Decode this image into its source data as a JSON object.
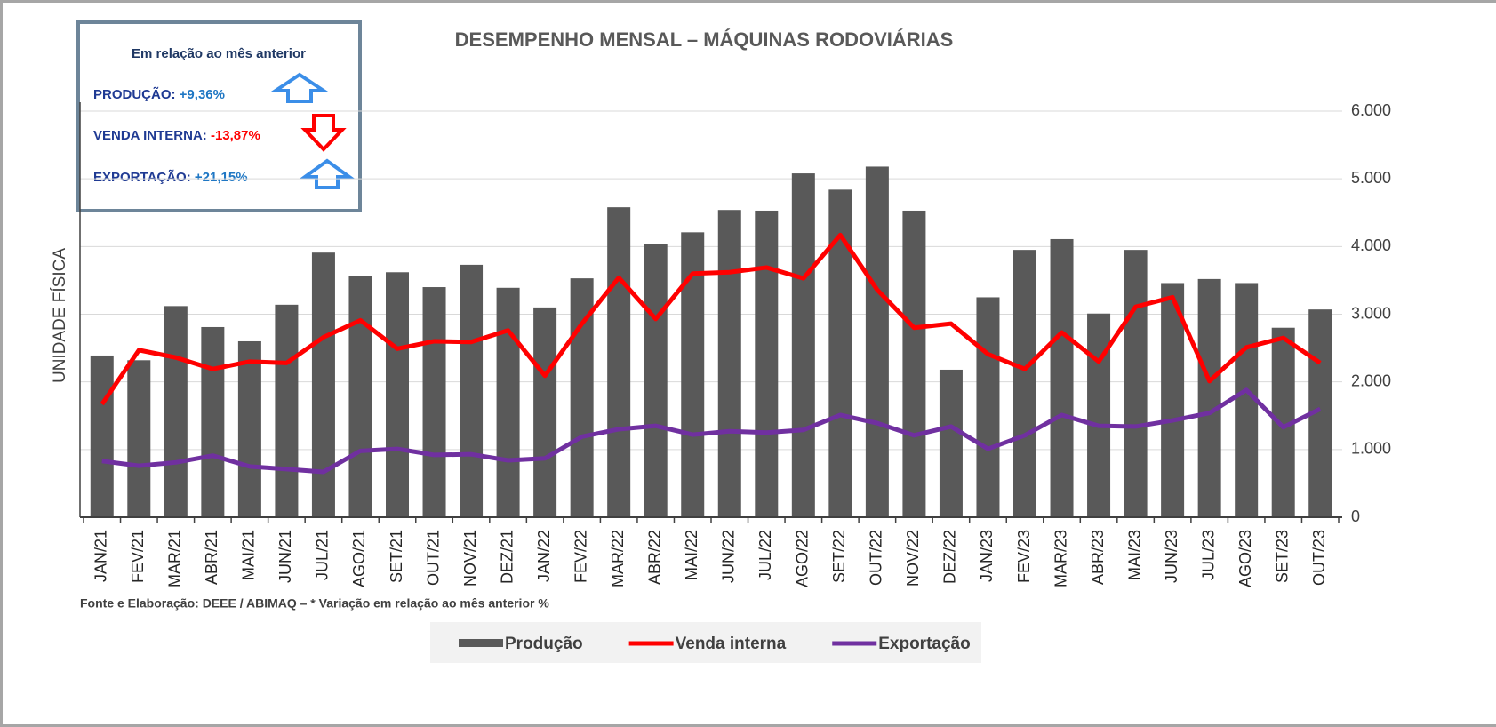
{
  "chart_data": {
    "type": "bar",
    "title": "DESEMPENHO MENSAL – MÁQUINAS RODOVIÁRIAS",
    "y_axis_label": "UNIDADE FÍSICA",
    "source": "Fonte e Elaboração: DEEE / ABIMAQ – * Variação em relação ao mês anterior %",
    "info_box": {
      "title": "Em relação ao mês anterior",
      "items": [
        {
          "label": "PRODUÇÃO:",
          "value": "+9,36%"
        },
        {
          "label": "VENDA INTERNA:",
          "value": "-13,87%"
        },
        {
          "label": "EXPORTAÇÃO:",
          "value": "+21,15%"
        }
      ]
    },
    "categories": [
      "JAN/21",
      "FEV/21",
      "MAR/21",
      "ABR/21",
      "MAI/21",
      "JUN/21",
      "JUL/21",
      "AGO/21",
      "SET/21",
      "OUT/21",
      "NOV/21",
      "DEZ/21",
      "JAN/22",
      "FEV/22",
      "MAR/22",
      "ABR/22",
      "MAI/22",
      "JUN/22",
      "JUL/22",
      "AGO/22",
      "SET/22",
      "OUT/22",
      "NOV/22",
      "DEZ/22",
      "JAN/23",
      "FEV/23",
      "MAR/23",
      "ABR/23",
      "MAI/23",
      "JUN/23",
      "JUL/23",
      "AGO/23",
      "SET/23",
      "OUT/23"
    ],
    "series": [
      {
        "name": "Produção",
        "type": "bar",
        "color": "#595959",
        "values": [
          2390,
          2320,
          3120,
          2810,
          2600,
          3140,
          3910,
          3560,
          3620,
          3400,
          3730,
          3390,
          3100,
          3530,
          4580,
          4040,
          4210,
          4540,
          4530,
          5080,
          4840,
          5180,
          4530,
          2180,
          3250,
          3950,
          4110,
          3010,
          3950,
          3460,
          3520,
          3460,
          2800,
          3070
        ]
      },
      {
        "name": "Venda interna",
        "type": "line",
        "color": "#ff0000",
        "values": [
          1670,
          2470,
          2360,
          2190,
          2300,
          2280,
          2660,
          2910,
          2490,
          2600,
          2590,
          2760,
          2090,
          2860,
          3540,
          2930,
          3600,
          3620,
          3690,
          3530,
          4170,
          3360,
          2800,
          2860,
          2410,
          2190,
          2730,
          2300,
          3110,
          3250,
          2010,
          2510,
          2650,
          2280
        ]
      },
      {
        "name": "Exportação",
        "type": "line",
        "color": "#7030a0",
        "values": [
          830,
          760,
          810,
          910,
          750,
          710,
          670,
          980,
          1010,
          920,
          930,
          840,
          870,
          1190,
          1300,
          1350,
          1220,
          1270,
          1250,
          1290,
          1510,
          1390,
          1210,
          1340,
          1010,
          1210,
          1510,
          1350,
          1340,
          1430,
          1540,
          1880,
          1330,
          1600
        ]
      }
    ],
    "ylim": [
      0,
      6000
    ],
    "yticks": [
      0,
      {
        "value": 1000,
        "label": "1.000"
      },
      {
        "value": 2000,
        "label": "2.000"
      },
      {
        "value": 3000,
        "label": "3.000"
      },
      {
        "value": 4000,
        "label": "4.000"
      },
      {
        "value": 5000,
        "label": "5.000"
      },
      {
        "value": 6000,
        "label": "6.000"
      }
    ],
    "grid": true
  }
}
